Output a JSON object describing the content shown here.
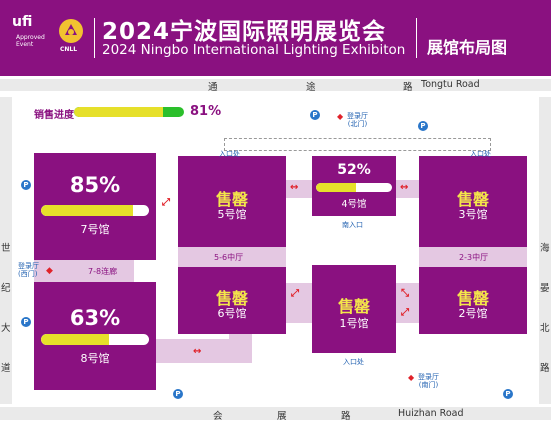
{
  "header": {
    "ufi_logo": "ufi",
    "ufi_sub_line1": "Approved",
    "ufi_sub_line2": "Event",
    "cnll_logo": "CNLL",
    "title_cn": "2024宁波国际照明展览会",
    "title_en": "2024 Ningbo International Lighting Exhibiton",
    "layout_title": "展馆布局图"
  },
  "roads": {
    "top": [
      "通",
      "途",
      "路"
    ],
    "top_en": "Tongtu Road",
    "bottom": [
      "会",
      "展",
      "路"
    ],
    "bottom_en": "Huizhan Road",
    "left": [
      "世",
      "纪",
      "大",
      "道"
    ],
    "right": [
      "海",
      "晏",
      "北",
      "路"
    ]
  },
  "sales": {
    "label": "销售进度",
    "percent": "81%",
    "progress": 0.81
  },
  "halls": {
    "h7": {
      "pct": "85%",
      "progress": 0.85,
      "name": "7号馆"
    },
    "h8": {
      "pct": "63%",
      "progress": 0.63,
      "name": "8号馆"
    },
    "h4": {
      "pct": "52%",
      "progress": 0.52,
      "name": "4号馆"
    },
    "h5": {
      "sold": "售罄",
      "name": "5号馆"
    },
    "h3": {
      "sold": "售罄",
      "name": "3号馆"
    },
    "h6": {
      "sold": "售罄",
      "name": "6号馆"
    },
    "h1": {
      "sold": "售罄",
      "name": "1号馆"
    },
    "h2": {
      "sold": "售罄",
      "name": "2号馆"
    }
  },
  "corridors": {
    "c78": "7-8连廊",
    "c56": "5-6中厅",
    "c23": "2-3中厅"
  },
  "labels": {
    "entry_left": "入口处",
    "entry_right": "入口处",
    "south_entry": "南入口",
    "entry_bottom": "入口处",
    "reg_north_1": "登录厅",
    "reg_north_2": "(北门)",
    "reg_west_1": "登录厅",
    "reg_west_2": "(西门)",
    "reg_south_1": "登录厅",
    "reg_south_2": "(南门)",
    "parking": "P"
  },
  "colors": {
    "brand": "#8a1180",
    "sold": "#f4e64a",
    "progress": "#e6e02a",
    "sales_bar": "#2bbf2b",
    "arrow": "#e0222a",
    "parking": "#2a76c9"
  }
}
